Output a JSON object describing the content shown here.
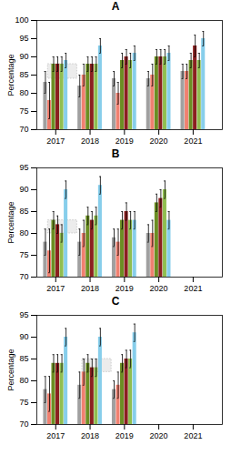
{
  "chart_data": [
    {
      "type": "bar",
      "title": "A",
      "ylabel": "Percentage",
      "x": [
        2017,
        2018,
        2019,
        2020,
        2021
      ],
      "xlim": [
        2016.45,
        2021.85
      ],
      "xticks": [
        2017,
        2018,
        2019,
        2020,
        2021
      ],
      "ylim": [
        70,
        100
      ],
      "yticks": [
        70,
        75,
        80,
        85,
        90,
        95,
        100
      ],
      "grid": false,
      "series": [
        {
          "color": "#a0a0a0",
          "values": [
            83,
            82,
            84,
            84,
            86
          ],
          "errors": [
            3,
            3,
            2,
            2,
            2
          ]
        },
        {
          "color": "#f08070",
          "values": [
            78,
            85,
            80,
            85,
            86
          ],
          "errors": [
            5,
            3,
            3,
            3,
            2
          ]
        },
        {
          "color": "#6b8e23",
          "values": [
            88,
            88,
            89,
            90,
            89
          ],
          "errors": [
            2,
            2,
            2,
            2,
            2
          ]
        },
        {
          "color": "#8b2020",
          "values": [
            88,
            88,
            90,
            90,
            93
          ],
          "errors": [
            2,
            2,
            2,
            2,
            3
          ]
        },
        {
          "color": "#90be50",
          "values": [
            88,
            88,
            89,
            90,
            89
          ],
          "errors": [
            2,
            2,
            2,
            2,
            2
          ]
        },
        {
          "color": "#87ceeb",
          "values": [
            89,
            93,
            91,
            91,
            95
          ],
          "errors": [
            2,
            2,
            2,
            2,
            2
          ]
        }
      ],
      "reference_box": {
        "x": 2017.2,
        "y": 84,
        "height": 4,
        "color": "#e0e0e0"
      }
    },
    {
      "type": "bar",
      "title": "B",
      "ylabel": "Percentage",
      "x": [
        2017,
        2018,
        2019,
        2020,
        2021
      ],
      "xlim": [
        2016.45,
        2021.85
      ],
      "xticks": [
        2017,
        2018,
        2019,
        2020,
        2021
      ],
      "ylim": [
        70,
        95
      ],
      "yticks": [
        70,
        75,
        80,
        85,
        90,
        95
      ],
      "grid": false,
      "series": [
        {
          "color": "#a0a0a0",
          "values": [
            78,
            78,
            79,
            80,
            null
          ],
          "errors": [
            3,
            3,
            2,
            2,
            null
          ]
        },
        {
          "color": "#f08070",
          "values": [
            76,
            80,
            78,
            80,
            null
          ],
          "errors": [
            5,
            3,
            3,
            3,
            null
          ]
        },
        {
          "color": "#6b8e23",
          "values": [
            83,
            84,
            83,
            87,
            null
          ],
          "errors": [
            2,
            2,
            2,
            2,
            null
          ]
        },
        {
          "color": "#8b2020",
          "values": [
            82,
            83,
            85,
            88,
            null
          ],
          "errors": [
            2,
            2,
            2,
            2,
            null
          ]
        },
        {
          "color": "#90be50",
          "values": [
            80,
            84,
            83,
            90,
            null
          ],
          "errors": [
            2,
            2,
            2,
            2,
            null
          ]
        },
        {
          "color": "#87ceeb",
          "values": [
            90,
            91,
            83,
            83,
            null
          ],
          "errors": [
            2,
            2,
            2,
            2,
            null
          ]
        }
      ],
      "reference_box": {
        "x": 2017.2,
        "y": 80,
        "height": 3,
        "color": "#e0e0e0"
      }
    },
    {
      "type": "bar",
      "title": "C",
      "ylabel": "Percentage",
      "x": [
        2017,
        2018,
        2019,
        2020,
        2021
      ],
      "xlim": [
        2016.45,
        2021.85
      ],
      "xticks": [
        2017,
        2018,
        2019,
        2020,
        2021
      ],
      "ylim": [
        70,
        95
      ],
      "yticks": [
        70,
        75,
        80,
        85,
        90,
        95
      ],
      "grid": false,
      "series": [
        {
          "color": "#a0a0a0",
          "values": [
            78,
            79,
            78,
            null,
            null
          ],
          "errors": [
            3,
            3,
            2,
            null,
            null
          ]
        },
        {
          "color": "#f08070",
          "values": [
            77,
            82,
            79,
            null,
            null
          ],
          "errors": [
            4,
            3,
            3,
            null,
            null
          ]
        },
        {
          "color": "#6b8e23",
          "values": [
            84,
            84,
            84,
            null,
            null
          ],
          "errors": [
            2,
            2,
            2,
            null,
            null
          ]
        },
        {
          "color": "#8b2020",
          "values": [
            84,
            83,
            85,
            null,
            null
          ],
          "errors": [
            2,
            2,
            2,
            null,
            null
          ]
        },
        {
          "color": "#90be50",
          "values": [
            84,
            83,
            85,
            null,
            null
          ],
          "errors": [
            2,
            2,
            2,
            null,
            null
          ]
        },
        {
          "color": "#87ceeb",
          "values": [
            90,
            90,
            91,
            null,
            null
          ],
          "errors": [
            2,
            2,
            2,
            null,
            null
          ]
        }
      ],
      "reference_box": {
        "x": 2018.2,
        "y": 82,
        "height": 3,
        "color": "#e0e0e0"
      }
    }
  ]
}
